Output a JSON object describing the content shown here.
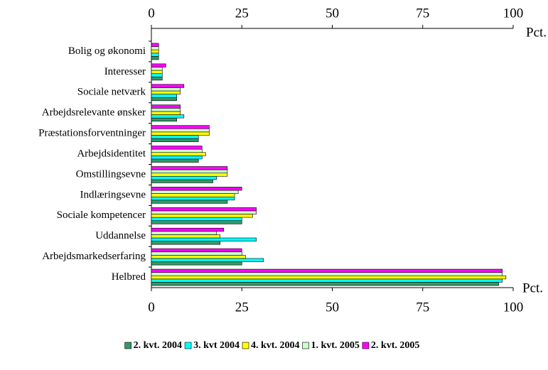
{
  "chart_data": {
    "type": "hbar",
    "x_label": "Pct.",
    "categories": [
      "Bolig og økonomi",
      "Interesser",
      "Sociale netværk",
      "Arbejdsrelevante ønsker",
      "Præstationsforventninger",
      "Arbejdsidentitet",
      "Omstillingsevne",
      "Indlæringsevne",
      "Sociale kompetencer",
      "Uddannelse",
      "Arbejdsmarkedserfaring",
      "Helbred"
    ],
    "series": [
      {
        "name": "2. kvt. 2004",
        "color": "#339966",
        "values": [
          2,
          3,
          7,
          7,
          13,
          13,
          17,
          21,
          25,
          19,
          25,
          96
        ]
      },
      {
        "name": "3. kvt 2004",
        "color": "#00ffff",
        "values": [
          2,
          3,
          7,
          9,
          13,
          14,
          18,
          23,
          25,
          29,
          31,
          97
        ]
      },
      {
        "name": "4. kvt. 2004",
        "color": "#ffff00",
        "values": [
          2,
          3,
          8,
          8,
          16,
          15,
          21,
          23,
          28,
          19,
          26,
          98
        ]
      },
      {
        "name": "1. kvt. 2005",
        "color": "#ccffcc",
        "values": [
          2,
          3,
          8,
          8,
          16,
          14,
          21,
          24,
          29,
          18,
          25,
          97
        ]
      },
      {
        "name": "2. kvt. 2005",
        "color": "#ff00ff",
        "values": [
          2,
          4,
          9,
          8,
          16,
          14,
          21,
          25,
          29,
          20,
          25,
          97
        ]
      }
    ],
    "xlim": [
      0,
      100
    ],
    "xticks": [
      0,
      25,
      50,
      75,
      100
    ]
  }
}
